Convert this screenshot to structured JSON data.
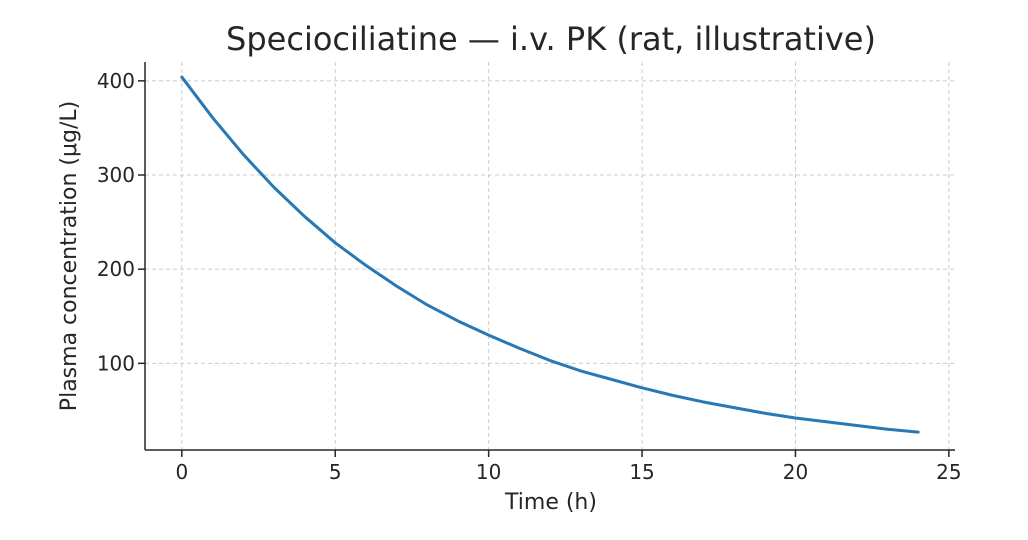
{
  "chart_data": {
    "type": "line",
    "title": "Speciociliatine — i.v. PK (rat, illustrative)",
    "xlabel": "Time (h)",
    "ylabel": "Plasma concentration (μg/L)",
    "xlim": [
      -1.2,
      25.2
    ],
    "ylim": [
      8,
      420
    ],
    "xticks": [
      0,
      5,
      10,
      15,
      20,
      25
    ],
    "yticks": [
      100,
      200,
      300,
      400
    ],
    "grid": true,
    "series": [
      {
        "color": "#2878b5",
        "x": [
          0,
          1,
          2,
          3,
          4,
          5,
          6,
          7,
          8,
          9,
          10,
          11,
          12,
          13,
          14,
          15,
          16,
          17,
          18,
          19,
          20,
          21,
          22,
          23,
          24
        ],
        "y": [
          404,
          361,
          322,
          287,
          256,
          228,
          204,
          182,
          162,
          145,
          130,
          116,
          103,
          92,
          83,
          74,
          66,
          59,
          53,
          47,
          42,
          38,
          34,
          30,
          27
        ]
      }
    ]
  }
}
